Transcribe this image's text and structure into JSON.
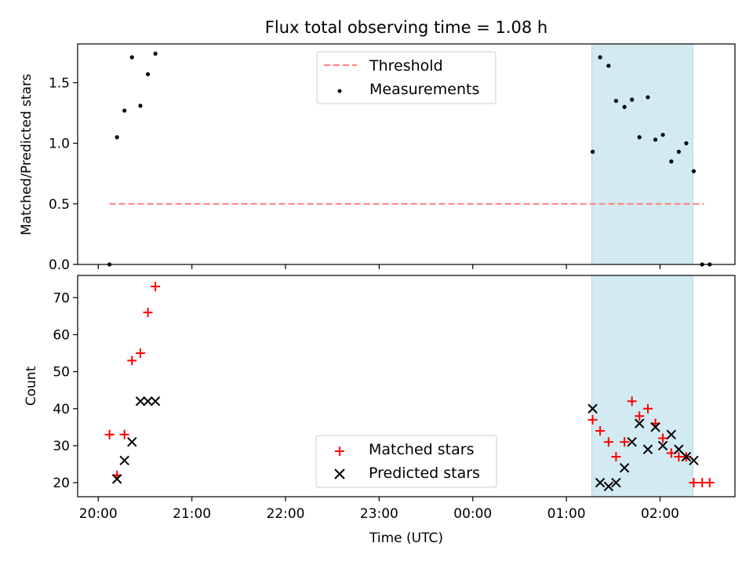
{
  "chart_data": [
    {
      "type": "scatter",
      "title": "Flux total observing time = 1.08 h",
      "ylabel": "Matched/Predicted stars",
      "xlim": [
        -0.22,
        6.8
      ],
      "ylim": [
        0,
        1.82
      ],
      "yticks": [
        0.0,
        0.5,
        1.0,
        1.5
      ],
      "ytick_labels": [
        "0.0",
        "0.5",
        "1.0",
        "1.5"
      ],
      "xticks": [
        0,
        1,
        2,
        3,
        4,
        5,
        6
      ],
      "shaded_region": [
        5.27,
        6.35
      ],
      "shaded_color": "#add8e6",
      "threshold": {
        "name": "Threshold",
        "y": 0.5,
        "x_range": [
          0.12,
          6.47
        ],
        "color": "#ff7f7f"
      },
      "measurements": {
        "name": "Measurements",
        "color": "#000000",
        "x": [
          0.12,
          0.2,
          0.28,
          0.36,
          0.45,
          0.53,
          0.61,
          5.28,
          5.36,
          5.45,
          5.53,
          5.62,
          5.7,
          5.78,
          5.87,
          5.95,
          6.03,
          6.12,
          6.2,
          6.28,
          6.36,
          6.45,
          6.53
        ],
        "y": [
          0.0,
          1.05,
          1.27,
          1.71,
          1.31,
          1.57,
          1.74,
          0.93,
          1.71,
          1.64,
          1.35,
          1.3,
          1.36,
          1.05,
          1.38,
          1.03,
          1.07,
          0.85,
          0.93,
          1.0,
          0.77,
          0.0,
          0.0
        ]
      },
      "legend": {
        "placement": "upper center",
        "entries": [
          "Threshold",
          "Measurements"
        ]
      }
    },
    {
      "type": "scatter",
      "xlabel": "Time (UTC)",
      "ylabel": "Count",
      "xlim": [
        -0.22,
        6.8
      ],
      "ylim": [
        16.2,
        76.0
      ],
      "yticks": [
        20,
        30,
        40,
        50,
        60,
        70
      ],
      "ytick_labels": [
        "20",
        "30",
        "40",
        "50",
        "60",
        "70"
      ],
      "xticks": [
        0,
        1,
        2,
        3,
        4,
        5,
        6
      ],
      "xtick_labels": [
        "20:00",
        "21:00",
        "22:00",
        "23:00",
        "00:00",
        "01:00",
        "02:00"
      ],
      "shaded_region": [
        5.27,
        6.35
      ],
      "shaded_color": "#add8e6",
      "series": [
        {
          "name": "Matched stars",
          "marker": "+",
          "color": "#ff0000",
          "x": [
            0.12,
            0.2,
            0.28,
            0.36,
            0.45,
            0.53,
            0.61,
            5.28,
            5.36,
            5.45,
            5.53,
            5.62,
            5.7,
            5.78,
            5.87,
            5.95,
            6.03,
            6.12,
            6.2,
            6.28,
            6.36,
            6.45,
            6.53
          ],
          "y": [
            33,
            22,
            33,
            53,
            55,
            66,
            73,
            37,
            34,
            31,
            27,
            31,
            42,
            38,
            40,
            36,
            32,
            28,
            27,
            27,
            20,
            20,
            20
          ]
        },
        {
          "name": "Predicted stars",
          "marker": "x",
          "color": "#000000",
          "x": [
            0.2,
            0.28,
            0.36,
            0.45,
            0.53,
            0.61,
            5.28,
            5.36,
            5.45,
            5.53,
            5.62,
            5.7,
            5.78,
            5.87,
            5.95,
            6.03,
            6.12,
            6.2,
            6.28,
            6.36
          ],
          "y": [
            21,
            26,
            31,
            42,
            42,
            42,
            40,
            20,
            19,
            20,
            24,
            31,
            36,
            29,
            35,
            30,
            33,
            29,
            27,
            26
          ]
        }
      ],
      "legend": {
        "placement": "lower center",
        "entries": [
          "Matched stars",
          "Predicted stars"
        ]
      }
    }
  ]
}
